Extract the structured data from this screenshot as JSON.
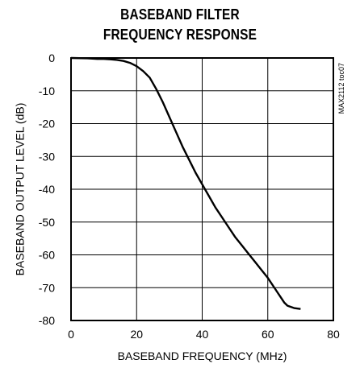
{
  "chart_data": {
    "type": "line",
    "title_lines": [
      "BASEBAND FILTER",
      "FREQUENCY RESPONSE"
    ],
    "xlabel": "BASEBAND FREQUENCY (MHz)",
    "ylabel": "BASEBAND OUTPUT LEVEL (dB)",
    "xlim": [
      0,
      80
    ],
    "ylim": [
      -80,
      0
    ],
    "xticks": [
      0,
      20,
      40,
      60,
      80
    ],
    "yticks": [
      0,
      -10,
      -20,
      -30,
      -40,
      -50,
      -60,
      -70,
      -80
    ],
    "grid": true,
    "annotation": "MAX2112 toc07",
    "series": [
      {
        "color": "#000000",
        "x": [
          0,
          5,
          8,
          10,
          12,
          14,
          16,
          18,
          20,
          22,
          24,
          26,
          28,
          30,
          32,
          34,
          36,
          38,
          40,
          42,
          44,
          46,
          48,
          50,
          52,
          54,
          56,
          58,
          60,
          62,
          63,
          64,
          65,
          66,
          68,
          70
        ],
        "y": [
          0,
          -0.1,
          -0.3,
          -0.3,
          -0.4,
          -0.6,
          -0.9,
          -1.5,
          -2.5,
          -4,
          -6,
          -9.5,
          -13.5,
          -18,
          -22.5,
          -27,
          -31,
          -35,
          -38.5,
          -42,
          -45.5,
          -48.5,
          -51.5,
          -54.5,
          -57,
          -59.5,
          -62,
          -64.5,
          -67,
          -70,
          -71.5,
          -73,
          -74.5,
          -75.5,
          -76.2,
          -76.5
        ]
      }
    ]
  }
}
